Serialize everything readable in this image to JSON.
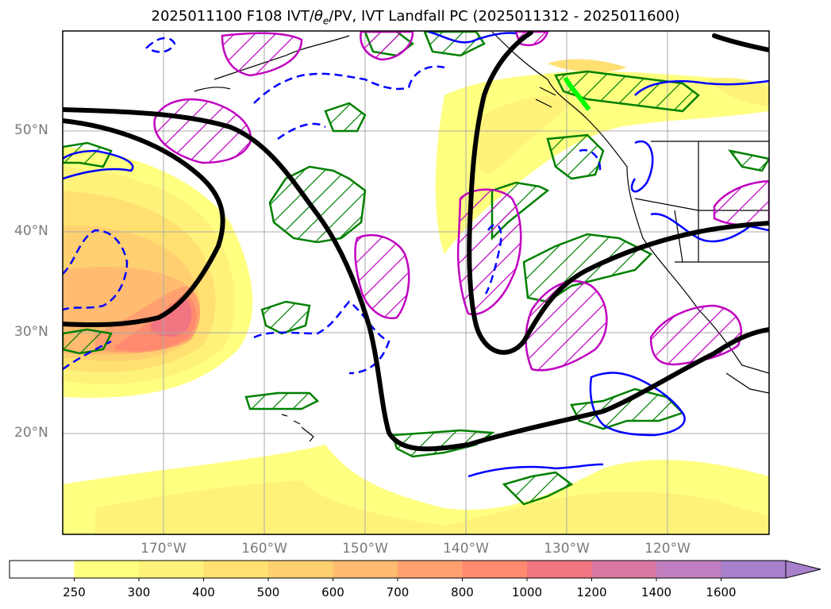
{
  "title": {
    "prefix": "2025011100 F108 IVT/",
    "theta": "θ",
    "theta_sub": "e",
    "suffix": "/PV, IVT Landfall PC (2025011312 - 2025011600)"
  },
  "lat_labels": [
    "50°N",
    "40°N",
    "30°N",
    "20°N"
  ],
  "lon_labels": [
    "170°W",
    "160°W",
    "150°W",
    "140°W",
    "130°W",
    "120°W"
  ],
  "colorbar": {
    "ticks": [
      "250",
      "300",
      "400",
      "500",
      "600",
      "700",
      "800",
      "1000",
      "1200",
      "1400",
      "1600"
    ],
    "colors": [
      "#ffffff",
      "#ffff80",
      "#fff27a",
      "#ffe070",
      "#ffd070",
      "#ffbb70",
      "#ffa070",
      "#ff8a70",
      "#f07580",
      "#d878a0",
      "#c07ec0",
      "#a880cc"
    ],
    "extend": "max"
  },
  "legend_colors": {
    "pv_contour": "#0000ff",
    "theta_e": "#008000",
    "landfall_pc": "#c000c0",
    "streamline": "#000000",
    "landfall_segment": "#00ff00"
  }
}
